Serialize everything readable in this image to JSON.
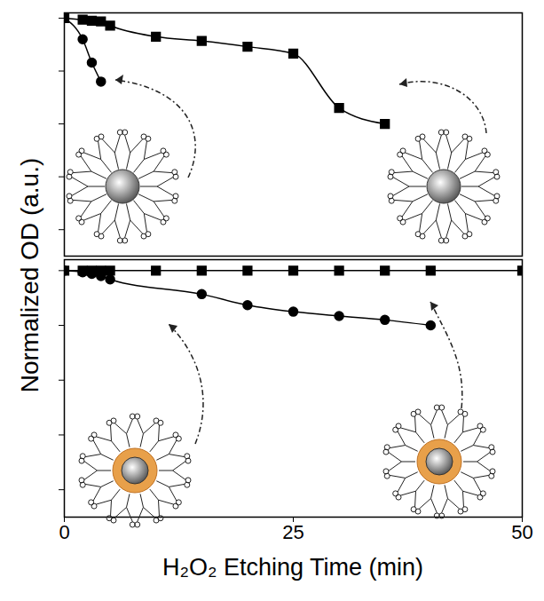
{
  "chart_data": [
    {
      "type": "line",
      "y_label": "Normalized OD (a.u.)",
      "xlim": [
        0,
        50
      ],
      "xticks": [
        0,
        25,
        50
      ],
      "ylim": [
        0.55,
        1.01
      ],
      "yticks": [
        0.6,
        0.7,
        0.8,
        0.9,
        1.0
      ],
      "tick_labels": false,
      "series": [
        {
          "color": "#000000",
          "marker": "square",
          "line_style": "solid",
          "x": [
            0,
            2,
            3,
            4,
            5,
            10,
            15,
            20,
            25,
            30,
            35
          ],
          "values": [
            1.0,
            0.997,
            0.995,
            0.994,
            0.986,
            0.965,
            0.957,
            0.946,
            0.933,
            0.83,
            0.8
          ]
        },
        {
          "color": "#000000",
          "marker": "circle",
          "line_style": "solid",
          "x": [
            0,
            2,
            3,
            4
          ],
          "values": [
            1.0,
            0.96,
            0.916,
            0.88
          ]
        }
      ]
    },
    {
      "type": "line",
      "x_label": "H₂O₂ Etching Time (min)",
      "xlim": [
        0,
        50
      ],
      "xticks": [
        0,
        25,
        50
      ],
      "ylim": [
        0.55,
        1.02
      ],
      "yticks": [
        0.6,
        0.7,
        0.8,
        0.9,
        1.0
      ],
      "tick_labels": "x",
      "series": [
        {
          "color": "#000000",
          "marker": "square",
          "line_style": "solid",
          "x": [
            0,
            2,
            3,
            4,
            5,
            10,
            15,
            20,
            25,
            30,
            35,
            40,
            50
          ],
          "values": [
            1.0,
            1.0,
            1.0,
            1.0,
            1.0,
            1.0,
            1.0,
            1.0,
            1.0,
            1.0,
            1.0,
            1.0,
            1.0
          ]
        },
        {
          "color": "#000000",
          "marker": "circle",
          "line_style": "solid",
          "x": [
            0,
            2,
            3,
            4,
            5,
            15,
            20,
            25,
            30,
            35,
            40
          ],
          "values": [
            1.0,
            0.997,
            0.994,
            0.99,
            0.984,
            0.957,
            0.937,
            0.925,
            0.917,
            0.91,
            0.9
          ]
        }
      ]
    }
  ]
}
